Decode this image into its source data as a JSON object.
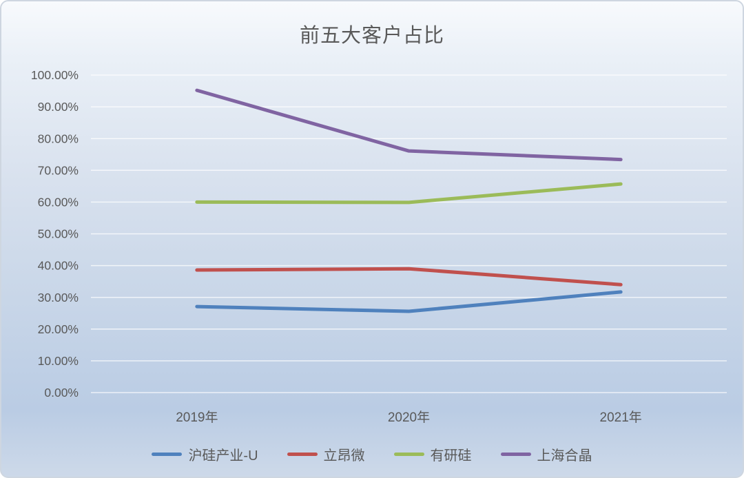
{
  "title": "前五大客户占比",
  "ui_colors": {
    "title_text": "#595959",
    "axis_text": "#595959",
    "gridline": "#FFFFFF",
    "background_top": "#F8FAFD",
    "background_bottom": "#BACCE4",
    "frame_border": "#CED6E0"
  },
  "chart_data": {
    "type": "line",
    "title": "前五大客户占比",
    "categories": [
      "2019年",
      "2020年",
      "2021年"
    ],
    "series": [
      {
        "name": "沪硅产业-U",
        "color": "#4F81BD",
        "values": [
          27.1,
          25.6,
          31.7
        ]
      },
      {
        "name": "立昂微",
        "color": "#C0504D",
        "values": [
          38.6,
          39.0,
          34.0
        ]
      },
      {
        "name": "有研硅",
        "color": "#9BBB59",
        "values": [
          60.0,
          59.9,
          65.7
        ]
      },
      {
        "name": "上海合晶",
        "color": "#8064A2",
        "values": [
          95.2,
          76.1,
          73.4
        ]
      }
    ],
    "xlabel": "",
    "ylabel": "",
    "ylim": [
      0,
      100
    ],
    "ytick_step": 10,
    "ytick_labels": [
      "0.00%",
      "10.00%",
      "20.00%",
      "30.00%",
      "40.00%",
      "50.00%",
      "60.00%",
      "70.00%",
      "80.00%",
      "90.00%",
      "100.00%"
    ],
    "grid": true,
    "legend_position": "bottom"
  }
}
